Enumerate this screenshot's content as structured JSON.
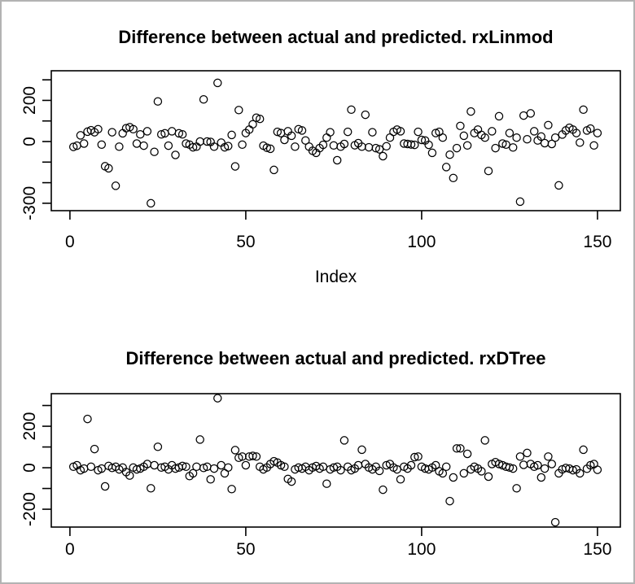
{
  "window": {
    "background": "#ffffff",
    "border_color": "#b3b3b3",
    "axis_color": "#000000",
    "point_color": "#000000"
  },
  "chart_data": [
    {
      "type": "scatter",
      "title": "Difference between actual and predicted. rxLinmod",
      "xlabel": "Index",
      "ylabel": "",
      "marker": "open-circle",
      "grid": false,
      "xlim": [
        -5.3,
        156.5
      ],
      "ylim": [
        -336,
        344
      ],
      "x_ticks": [
        {
          "value": 0,
          "label": "0"
        },
        {
          "value": 50,
          "label": "50"
        },
        {
          "value": 100,
          "label": "100"
        },
        {
          "value": 150,
          "label": "150"
        }
      ],
      "y_ticks": [
        {
          "value": 300,
          "label": ""
        },
        {
          "value": 200,
          "label": "200"
        },
        {
          "value": 100,
          "label": ""
        },
        {
          "value": 0,
          "label": "0"
        },
        {
          "value": -100,
          "label": ""
        },
        {
          "value": -200,
          "label": ""
        },
        {
          "value": -300,
          "label": "-300"
        }
      ],
      "x_is_index": true,
      "values": [
        -26,
        -20,
        30,
        -10,
        48,
        55,
        45,
        60,
        -15,
        -120,
        -130,
        45,
        -215,
        -25,
        40,
        65,
        70,
        60,
        -10,
        35,
        -20,
        50,
        -300,
        -50,
        195,
        35,
        40,
        -20,
        50,
        -65,
        40,
        35,
        -10,
        -15,
        -28,
        -25,
        0,
        205,
        0,
        -2,
        -25,
        285,
        -5,
        -28,
        -22,
        32,
        -121,
        153,
        -15,
        41,
        58,
        84,
        116,
        110,
        -20,
        -30,
        -35,
        -138,
        47,
        41,
        8,
        50,
        28,
        -25,
        60,
        54,
        5,
        -25,
        -45,
        -55,
        -32,
        -16,
        19,
        45,
        -19,
        -91,
        -25,
        -12,
        47,
        155,
        -18,
        -8,
        -25,
        130,
        -28,
        45,
        -32,
        -38,
        -71,
        -23,
        19,
        47,
        58,
        50,
        -10,
        -12,
        -14,
        -16,
        47,
        8,
        5,
        -16,
        -55,
        41,
        47,
        19,
        -124,
        -64,
        -177,
        -32,
        76,
        28,
        -19,
        146,
        41,
        58,
        32,
        19,
        -143,
        50,
        -32,
        123,
        -10,
        -15,
        41,
        -29,
        19,
        -292,
        126,
        11,
        137,
        50,
        5,
        24,
        -8,
        80,
        -12,
        19,
        -213,
        34,
        54,
        67,
        58,
        41,
        -5,
        155,
        54,
        63,
        -19,
        41
      ]
    },
    {
      "type": "scatter",
      "title": "Difference between actual and predicted. rxDTree",
      "xlabel": "",
      "ylabel": "",
      "marker": "open-circle",
      "grid": false,
      "xlim": [
        -5.3,
        156.5
      ],
      "ylim": [
        -286,
        357
      ],
      "x_ticks": [
        {
          "value": 0,
          "label": "0"
        },
        {
          "value": 50,
          "label": "50"
        },
        {
          "value": 100,
          "label": "100"
        },
        {
          "value": 150,
          "label": "150"
        }
      ],
      "y_ticks": [
        {
          "value": 300,
          "label": ""
        },
        {
          "value": 200,
          "label": "200"
        },
        {
          "value": 100,
          "label": ""
        },
        {
          "value": 0,
          "label": "0"
        },
        {
          "value": -100,
          "label": ""
        },
        {
          "value": -200,
          "label": "-200"
        }
      ],
      "x_is_index": true,
      "values": [
        5,
        12,
        -12,
        -4,
        235,
        5,
        90,
        -12,
        -4,
        -90,
        9,
        -1,
        5,
        -8,
        1,
        -21,
        -38,
        1,
        -8,
        -4,
        5,
        18,
        -99,
        12,
        101,
        1,
        5,
        -8,
        12,
        -4,
        1,
        9,
        5,
        -40,
        -27,
        5,
        136,
        -1,
        5,
        -56,
        -4,
        335,
        12,
        -27,
        1,
        -103,
        85,
        48,
        54,
        12,
        54,
        57,
        54,
        5,
        -8,
        1,
        18,
        31,
        25,
        12,
        5,
        -54,
        -67,
        -8,
        1,
        -4,
        5,
        -12,
        1,
        8,
        -4,
        5,
        -77,
        -8,
        1,
        5,
        -12,
        132,
        5,
        -12,
        -4,
        12,
        87,
        18,
        1,
        -8,
        5,
        -15,
        -106,
        12,
        18,
        1,
        -8,
        -56,
        5,
        -4,
        12,
        51,
        54,
        5,
        -4,
        -8,
        1,
        12,
        -17,
        -27,
        5,
        -161,
        -47,
        93,
        93,
        -27,
        67,
        -8,
        5,
        -4,
        -17,
        132,
        -43,
        18,
        27,
        18,
        12,
        5,
        1,
        -4,
        -99,
        54,
        14,
        71,
        18,
        5,
        12,
        -47,
        -4,
        54,
        18,
        -263,
        -27,
        -8,
        -1,
        -4,
        -12,
        -8,
        -27,
        87,
        -5,
        12,
        18,
        -10
      ]
    }
  ]
}
